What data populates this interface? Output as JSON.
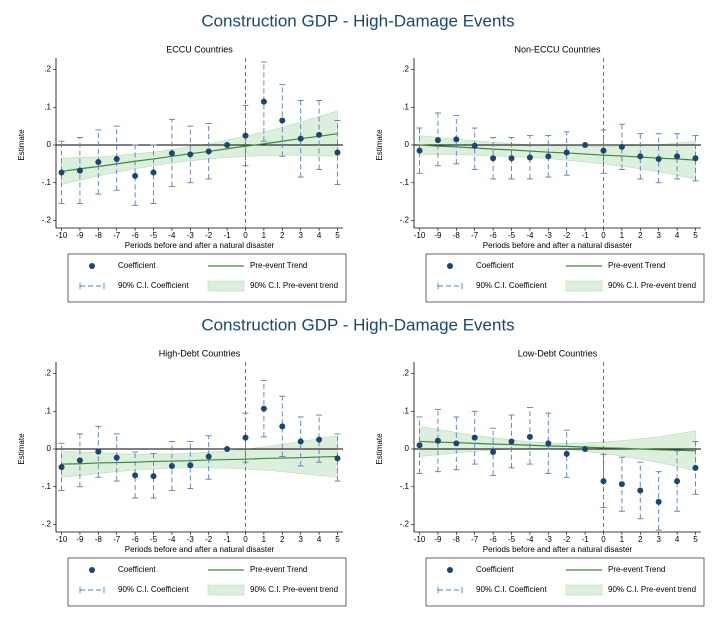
{
  "chart_data": [
    {
      "type": "coefplot",
      "title": "Construction GDP - High-Damage Events",
      "subtitle": "ECCU Countries",
      "xlabel": "Periods before and after a natural disaster",
      "ylabel": "Estimate",
      "x": [
        -10,
        -9,
        -8,
        -7,
        -6,
        -5,
        -4,
        -3,
        -2,
        -1,
        0,
        1,
        2,
        3,
        4,
        5
      ],
      "xlim": [
        -10.3,
        5.3
      ],
      "xticks": [
        -10,
        -9,
        -8,
        -7,
        -6,
        -5,
        -4,
        -3,
        -2,
        -1,
        0,
        1,
        2,
        3,
        4,
        5
      ],
      "ylim": [
        -0.22,
        0.22
      ],
      "yticks": [
        {
          "value": 0.2,
          "label": ".2"
        },
        {
          "value": 0.1,
          "label": ".1"
        },
        0,
        {
          "value": -0.1,
          "label": "-.1"
        },
        {
          "value": -0.2,
          "label": "-.2"
        }
      ],
      "vline": 0,
      "vline_color": "#e0453a",
      "series": [
        {
          "name": "Coefficient",
          "color": "#1a476f",
          "values": [
            -0.073,
            -0.068,
            -0.045,
            -0.037,
            -0.082,
            -0.073,
            -0.022,
            -0.025,
            -0.017,
            0,
            0.025,
            0.115,
            0.065,
            0.017,
            0.027,
            -0.02
          ]
        },
        {
          "name": "90% C.I. Coefficient",
          "color": "#5a7fb5",
          "lower": [
            -0.155,
            -0.155,
            -0.13,
            -0.12,
            -0.16,
            -0.155,
            -0.11,
            -0.1,
            -0.09,
            null,
            -0.055,
            0.01,
            -0.03,
            -0.085,
            -0.065,
            -0.105
          ],
          "upper": [
            0.01,
            0.02,
            0.04,
            0.05,
            0,
            0,
            0.068,
            0.05,
            0.057,
            null,
            0.105,
            0.22,
            0.16,
            0.118,
            0.118,
            0.065
          ]
        },
        {
          "name": "Pre-event Trend",
          "color": "#3a8a3a",
          "values": [
            -0.07,
            -0.063,
            -0.057,
            -0.05,
            -0.043,
            -0.037,
            -0.03,
            -0.023,
            -0.017,
            -0.01,
            -0.003,
            0.003,
            0.01,
            0.017,
            0.023,
            0.03
          ]
        },
        {
          "name": "90% C.I. Pre-event trend",
          "color": "#dcefdc",
          "lower": [
            -0.105,
            -0.093,
            -0.082,
            -0.072,
            -0.063,
            -0.055,
            -0.048,
            -0.042,
            -0.037,
            -0.033,
            -0.03,
            -0.028,
            -0.027,
            -0.027,
            -0.028,
            -0.03
          ],
          "upper": [
            -0.035,
            -0.033,
            -0.032,
            -0.028,
            -0.023,
            -0.019,
            -0.012,
            -0.004,
            0.003,
            0.013,
            0.024,
            0.034,
            0.047,
            0.061,
            0.075,
            0.09
          ]
        }
      ]
    },
    {
      "type": "coefplot",
      "subtitle": "Non-ECCU Countries",
      "xlabel": "Periods before and after a natural disaster",
      "ylabel": "Estimate",
      "x": [
        -10,
        -9,
        -8,
        -7,
        -6,
        -5,
        -4,
        -3,
        -2,
        -1,
        0,
        1,
        2,
        3,
        4,
        5
      ],
      "xlim": [
        -10.3,
        5.3
      ],
      "xticks": [
        -10,
        -9,
        -8,
        -7,
        -6,
        -5,
        -4,
        -3,
        -2,
        -1,
        0,
        1,
        2,
        3,
        4,
        5
      ],
      "ylim": [
        -0.22,
        0.22
      ],
      "yticks": [
        {
          "value": 0.2,
          "label": ".2"
        },
        {
          "value": 0.1,
          "label": ".1"
        },
        0,
        {
          "value": -0.1,
          "label": "-.1"
        },
        {
          "value": -0.2,
          "label": "-.2"
        }
      ],
      "vline": 0,
      "vline_color": "#e0453a",
      "series": [
        {
          "name": "Coefficient",
          "color": "#1a476f",
          "values": [
            -0.015,
            0.013,
            0.015,
            -0.002,
            -0.035,
            -0.035,
            -0.033,
            -0.03,
            -0.02,
            0,
            -0.015,
            -0.005,
            -0.03,
            -0.037,
            -0.03,
            -0.035
          ]
        },
        {
          "name": "90% C.I. Coefficient",
          "color": "#5a7fb5",
          "lower": [
            -0.075,
            -0.055,
            -0.05,
            -0.065,
            -0.09,
            -0.09,
            -0.09,
            -0.085,
            -0.08,
            null,
            -0.075,
            -0.065,
            -0.09,
            -0.1,
            -0.09,
            -0.095
          ],
          "upper": [
            0.045,
            0.085,
            0.078,
            0.045,
            0.02,
            0.02,
            0.025,
            0.025,
            0.035,
            null,
            0.04,
            0.055,
            0.03,
            0.03,
            0.03,
            0.025
          ]
        },
        {
          "name": "Pre-event Trend",
          "color": "#3a8a3a",
          "values": [
            0,
            -0.003,
            -0.005,
            -0.008,
            -0.011,
            -0.013,
            -0.016,
            -0.019,
            -0.021,
            -0.024,
            -0.027,
            -0.029,
            -0.032,
            -0.035,
            -0.037,
            -0.04
          ]
        },
        {
          "name": "90% C.I. Pre-event trend",
          "color": "#dcefdc",
          "lower": [
            -0.025,
            -0.025,
            -0.025,
            -0.027,
            -0.029,
            -0.031,
            -0.033,
            -0.036,
            -0.04,
            -0.045,
            -0.05,
            -0.056,
            -0.063,
            -0.071,
            -0.08,
            -0.09
          ],
          "upper": [
            0.025,
            0.02,
            0.015,
            0.011,
            0.007,
            0.004,
            0.001,
            -0.002,
            -0.003,
            -0.003,
            -0.004,
            -0.003,
            -0.001,
            0.001,
            0.005,
            0.01
          ]
        }
      ]
    },
    {
      "type": "coefplot",
      "title": "Construction GDP - High-Damage Events",
      "subtitle": "High-Debt Countries",
      "xlabel": "Periods before and after a natural disaster",
      "ylabel": "Estimate",
      "x": [
        -10,
        -9,
        -8,
        -7,
        -6,
        -5,
        -4,
        -3,
        -2,
        -1,
        0,
        1,
        2,
        3,
        4,
        5
      ],
      "xlim": [
        -10.3,
        5.3
      ],
      "xticks": [
        -10,
        -9,
        -8,
        -7,
        -6,
        -5,
        -4,
        -3,
        -2,
        -1,
        0,
        1,
        2,
        3,
        4,
        5
      ],
      "ylim": [
        -0.22,
        0.22
      ],
      "yticks": [
        {
          "value": 0.2,
          "label": ".2"
        },
        {
          "value": 0.1,
          "label": ".1"
        },
        0,
        {
          "value": -0.1,
          "label": "-.1"
        },
        {
          "value": -0.2,
          "label": "-.2"
        }
      ],
      "vline": 0,
      "vline_color": "#e0453a",
      "series": [
        {
          "name": "Coefficient",
          "color": "#1a476f",
          "values": [
            -0.048,
            -0.03,
            -0.007,
            -0.023,
            -0.07,
            -0.072,
            -0.045,
            -0.043,
            -0.02,
            0,
            0.03,
            0.107,
            0.06,
            0.02,
            0.025,
            -0.025
          ]
        },
        {
          "name": "90% C.I. Coefficient",
          "color": "#5a7fb5",
          "lower": [
            -0.11,
            -0.1,
            -0.075,
            -0.085,
            -0.13,
            -0.13,
            -0.11,
            -0.105,
            -0.08,
            null,
            -0.035,
            0.032,
            -0.02,
            -0.045,
            -0.035,
            -0.085
          ],
          "upper": [
            0.015,
            0.04,
            0.06,
            0.04,
            -0.008,
            -0.012,
            0.02,
            0.02,
            0.035,
            null,
            0.095,
            0.182,
            0.14,
            0.085,
            0.09,
            0.04
          ]
        },
        {
          "name": "Pre-event Trend",
          "color": "#3a8a3a",
          "values": [
            -0.04,
            -0.039,
            -0.037,
            -0.036,
            -0.035,
            -0.033,
            -0.032,
            -0.031,
            -0.029,
            -0.028,
            -0.027,
            -0.025,
            -0.024,
            -0.023,
            -0.021,
            -0.02
          ]
        },
        {
          "name": "90% C.I. Pre-event trend",
          "color": "#dcefdc",
          "lower": [
            -0.075,
            -0.07,
            -0.065,
            -0.06,
            -0.056,
            -0.053,
            -0.051,
            -0.05,
            -0.05,
            -0.051,
            -0.053,
            -0.056,
            -0.06,
            -0.065,
            -0.07,
            -0.075
          ],
          "upper": [
            -0.005,
            -0.008,
            -0.009,
            -0.012,
            -0.014,
            -0.013,
            -0.013,
            -0.012,
            -0.008,
            -0.005,
            -0.001,
            0.006,
            0.012,
            0.019,
            0.028,
            0.035
          ]
        }
      ]
    },
    {
      "type": "coefplot",
      "subtitle": "Low-Debt Countries",
      "xlabel": "Periods before and after a natural disaster",
      "ylabel": "Estimate",
      "x": [
        -10,
        -9,
        -8,
        -7,
        -6,
        -5,
        -4,
        -3,
        -2,
        -1,
        0,
        1,
        2,
        3,
        4,
        5
      ],
      "xlim": [
        -10.3,
        5.3
      ],
      "xticks": [
        -10,
        -9,
        -8,
        -7,
        -6,
        -5,
        -4,
        -3,
        -2,
        -1,
        0,
        1,
        2,
        3,
        4,
        5
      ],
      "ylim": [
        -0.22,
        0.22
      ],
      "yticks": [
        {
          "value": 0.2,
          "label": ".2"
        },
        {
          "value": 0.1,
          "label": ".1"
        },
        0,
        {
          "value": -0.1,
          "label": "-.1"
        },
        {
          "value": -0.2,
          "label": "-.2"
        }
      ],
      "vline": 0,
      "vline_color": "#e0453a",
      "series": [
        {
          "name": "Coefficient",
          "color": "#1a476f",
          "values": [
            0.01,
            0.022,
            0.015,
            0.03,
            -0.008,
            0.02,
            0.032,
            0.015,
            -0.013,
            0,
            -0.085,
            -0.093,
            -0.11,
            -0.14,
            -0.085,
            -0.05
          ]
        },
        {
          "name": "90% C.I. Coefficient",
          "color": "#5a7fb5",
          "lower": [
            -0.065,
            -0.06,
            -0.055,
            -0.04,
            -0.07,
            -0.05,
            -0.04,
            -0.065,
            -0.075,
            null,
            -0.155,
            -0.165,
            -0.185,
            -0.215,
            -0.165,
            -0.12
          ],
          "upper": [
            0.085,
            0.105,
            0.085,
            0.1,
            0.055,
            0.09,
            0.11,
            0.095,
            0.05,
            null,
            -0.015,
            -0.022,
            -0.035,
            -0.06,
            -0.005,
            0.02
          ]
        },
        {
          "name": "Pre-event Trend",
          "color": "#3a8a3a",
          "values": [
            0.02,
            0.018,
            0.017,
            0.015,
            0.013,
            0.012,
            0.01,
            0.008,
            0.007,
            0.005,
            0.003,
            0.002,
            0,
            -0.002,
            -0.003,
            -0.005
          ]
        },
        {
          "name": "90% C.I. Pre-event trend",
          "color": "#dcefdc",
          "lower": [
            -0.02,
            -0.015,
            -0.01,
            -0.006,
            -0.003,
            0,
            0.001,
            0.001,
            -0.002,
            -0.006,
            -0.012,
            -0.019,
            -0.027,
            -0.036,
            -0.046,
            -0.058
          ],
          "upper": [
            0.06,
            0.052,
            0.044,
            0.036,
            0.03,
            0.024,
            0.019,
            0.016,
            0.015,
            0.016,
            0.019,
            0.022,
            0.027,
            0.032,
            0.04,
            0.048
          ]
        }
      ]
    }
  ]
}
